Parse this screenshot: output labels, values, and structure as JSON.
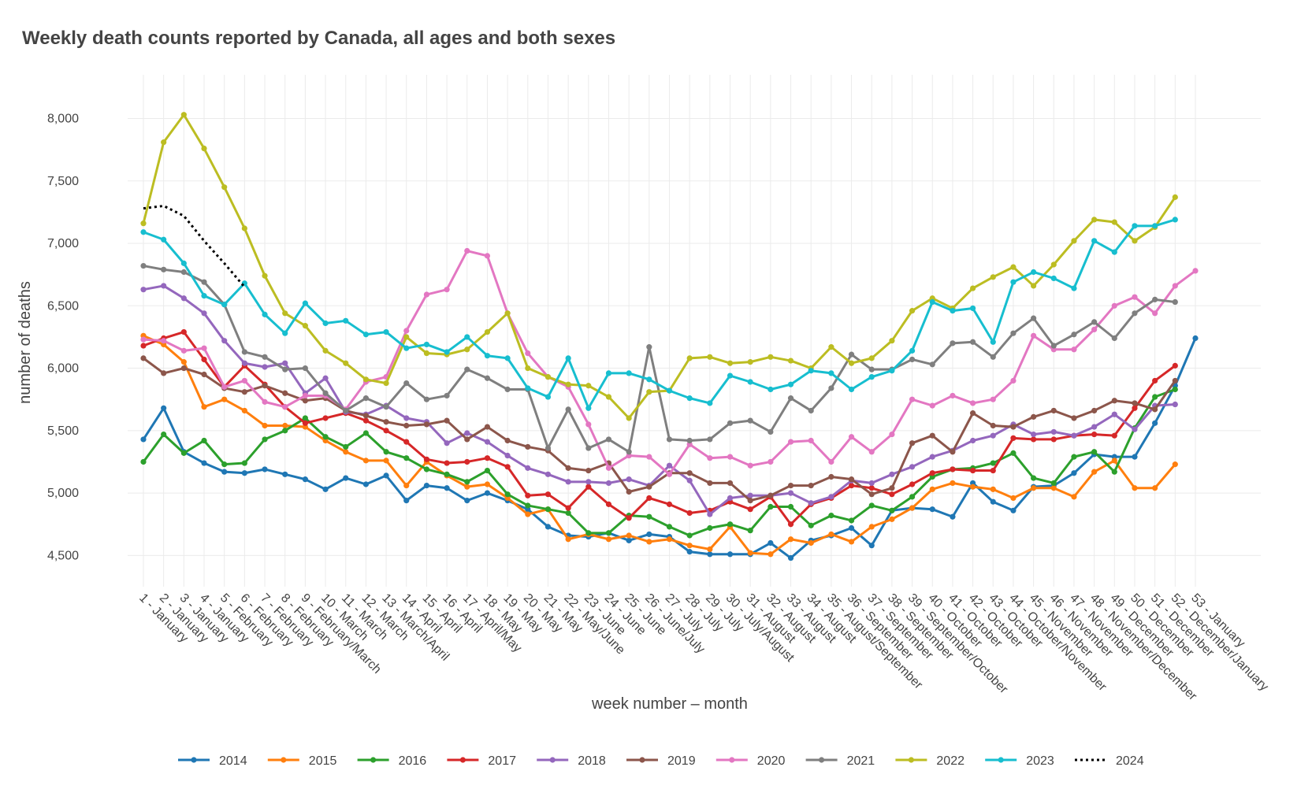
{
  "chart_data": {
    "type": "line",
    "title": "Weekly death counts reported by Canada, all ages and both sexes",
    "xlabel": "week number – month",
    "ylabel": "number of deaths",
    "ylim": [
      4250,
      8350
    ],
    "yticks": [
      4500,
      5000,
      5500,
      6000,
      6500,
      7000,
      7500,
      8000
    ],
    "ytick_labels": [
      "4,500",
      "5,000",
      "5,500",
      "6,000",
      "6,500",
      "7,000",
      "7,500",
      "8,000"
    ],
    "grid": true,
    "legend_position": "bottom",
    "categories": [
      "1 - January",
      "2 - January",
      "3 - January",
      "4 - January",
      "5 - February",
      "6 - February",
      "7 - February",
      "8 - February",
      "9 - February/March",
      "10 - March",
      "11 - March",
      "12 - March",
      "13 - March/April",
      "14 - April",
      "15 - April",
      "16 - April",
      "17 - April/May",
      "18 - May",
      "19 - May",
      "20 - May",
      "21 - May",
      "22 - May/June",
      "23 - June",
      "24 - June",
      "25 - June",
      "26 - June/July",
      "27 - July",
      "28 - July",
      "29 - July",
      "30 - July/August",
      "31 - August",
      "32 - August",
      "33 - August",
      "34 - August",
      "35 - August/September",
      "36 - September",
      "37 - September",
      "38 - September",
      "39 - September/October",
      "40 - October",
      "41 - October",
      "42 - October",
      "43 - October",
      "44 - October/November",
      "45 - November",
      "46 - November",
      "47 - November",
      "48 - November/December",
      "49 - December",
      "50 - December",
      "51 - December",
      "52 - December/January",
      "53 - January"
    ],
    "series": [
      {
        "name": "2014",
        "color": "#1f77b4",
        "dash": false,
        "values": [
          5430,
          5680,
          5330,
          5240,
          5170,
          5160,
          5190,
          5150,
          5110,
          5030,
          5120,
          5070,
          5140,
          4940,
          5060,
          5040,
          4940,
          5000,
          4940,
          4870,
          4730,
          4660,
          4650,
          4680,
          4620,
          4670,
          4650,
          4530,
          4510,
          4510,
          4510,
          4600,
          4480,
          4620,
          4660,
          4720,
          4580,
          4860,
          4880,
          4870,
          4810,
          5080,
          4930,
          4860,
          5050,
          5060,
          5160,
          5310,
          5290,
          5290,
          5560,
          5860,
          6240
        ]
      },
      {
        "name": "2015",
        "color": "#ff7f0e",
        "dash": false,
        "values": [
          6260,
          6190,
          6050,
          5690,
          5750,
          5660,
          5540,
          5540,
          5530,
          5420,
          5330,
          5260,
          5260,
          5060,
          5250,
          5140,
          5050,
          5070,
          4960,
          4830,
          4870,
          4630,
          4670,
          4630,
          4660,
          4610,
          4630,
          4580,
          4550,
          4730,
          4520,
          4510,
          4630,
          4600,
          4670,
          4610,
          4730,
          4790,
          4880,
          5030,
          5080,
          5050,
          5030,
          4960,
          5040,
          5040,
          4970,
          5170,
          5260,
          5040,
          5040,
          5230,
          null
        ]
      },
      {
        "name": "2016",
        "color": "#2ca02c",
        "dash": false,
        "values": [
          5250,
          5470,
          5320,
          5420,
          5230,
          5240,
          5430,
          5500,
          5600,
          5450,
          5370,
          5480,
          5330,
          5280,
          5190,
          5150,
          5090,
          5180,
          4990,
          4900,
          4870,
          4840,
          4680,
          4680,
          4820,
          4810,
          4730,
          4660,
          4720,
          4750,
          4700,
          4890,
          4890,
          4740,
          4820,
          4780,
          4900,
          4860,
          4970,
          5130,
          5190,
          5200,
          5240,
          5320,
          5120,
          5080,
          5290,
          5330,
          5170,
          5520,
          5770,
          5830,
          null
        ]
      },
      {
        "name": "2017",
        "color": "#d62728",
        "dash": false,
        "values": [
          6180,
          6240,
          6290,
          6070,
          5850,
          6020,
          5870,
          5690,
          5560,
          5600,
          5640,
          5580,
          5500,
          5410,
          5270,
          5240,
          5250,
          5280,
          5210,
          4980,
          4990,
          4880,
          5050,
          4910,
          4800,
          4960,
          4910,
          4840,
          4860,
          4930,
          4870,
          4970,
          4750,
          4910,
          4960,
          5060,
          5040,
          4990,
          5070,
          5160,
          5190,
          5180,
          5180,
          5440,
          5430,
          5430,
          5460,
          5470,
          5460,
          5680,
          5900,
          6020,
          null
        ]
      },
      {
        "name": "2018",
        "color": "#9467bd",
        "dash": false,
        "values": [
          6630,
          6660,
          6560,
          6440,
          6220,
          6040,
          6010,
          6040,
          5800,
          5920,
          5650,
          5630,
          5700,
          5600,
          5570,
          5400,
          5480,
          5410,
          5300,
          5200,
          5150,
          5090,
          5090,
          5080,
          5110,
          5060,
          5220,
          5100,
          4830,
          4960,
          4980,
          4980,
          5000,
          4920,
          4970,
          5100,
          5080,
          5150,
          5210,
          5290,
          5340,
          5420,
          5460,
          5550,
          5470,
          5490,
          5460,
          5530,
          5630,
          5510,
          5700,
          5710,
          null
        ]
      },
      {
        "name": "2019",
        "color": "#8c564b",
        "dash": false,
        "values": [
          6080,
          5960,
          6000,
          5950,
          5840,
          5810,
          5860,
          5800,
          5740,
          5760,
          5660,
          5620,
          5570,
          5540,
          5550,
          5580,
          5430,
          5530,
          5420,
          5370,
          5340,
          5200,
          5180,
          5240,
          5010,
          5050,
          5160,
          5160,
          5080,
          5080,
          4940,
          4980,
          5060,
          5060,
          5130,
          5110,
          4990,
          5040,
          5400,
          5460,
          5330,
          5640,
          5540,
          5530,
          5610,
          5660,
          5600,
          5660,
          5740,
          5720,
          5670,
          5900,
          null
        ]
      },
      {
        "name": "2020",
        "color": "#e377c2",
        "dash": false,
        "values": [
          6230,
          6220,
          6140,
          6160,
          5850,
          5900,
          5730,
          5690,
          5780,
          5780,
          5670,
          5890,
          5930,
          6300,
          6590,
          6630,
          6940,
          6900,
          6440,
          6120,
          5930,
          5850,
          5550,
          5200,
          5300,
          5290,
          5150,
          5390,
          5280,
          5290,
          5220,
          5250,
          5410,
          5420,
          5250,
          5450,
          5330,
          5470,
          5750,
          5700,
          5780,
          5720,
          5750,
          5900,
          6260,
          6150,
          6150,
          6310,
          6500,
          6570,
          6440,
          6660,
          6780
        ]
      },
      {
        "name": "2021",
        "color": "#7f7f7f",
        "dash": false,
        "values": [
          6820,
          6790,
          6770,
          6690,
          6510,
          6130,
          6090,
          5990,
          6000,
          5800,
          5660,
          5760,
          5690,
          5880,
          5750,
          5780,
          5990,
          5920,
          5830,
          5830,
          5360,
          5670,
          5360,
          5430,
          5330,
          6170,
          5430,
          5420,
          5430,
          5560,
          5580,
          5490,
          5760,
          5660,
          5840,
          6110,
          5990,
          5990,
          6070,
          6030,
          6200,
          6210,
          6090,
          6280,
          6400,
          6180,
          6270,
          6370,
          6240,
          6440,
          6550,
          6530,
          null
        ]
      },
      {
        "name": "2022",
        "color": "#bcbd22",
        "dash": false,
        "values": [
          7160,
          7810,
          8030,
          7760,
          7450,
          7120,
          6740,
          6440,
          6340,
          6140,
          6040,
          5910,
          5880,
          6250,
          6120,
          6110,
          6150,
          6290,
          6440,
          6000,
          5930,
          5870,
          5860,
          5770,
          5600,
          5810,
          5820,
          6080,
          6090,
          6040,
          6050,
          6090,
          6060,
          6000,
          6170,
          6040,
          6080,
          6220,
          6460,
          6560,
          6480,
          6640,
          6730,
          6810,
          6660,
          6830,
          7020,
          7190,
          7170,
          7020,
          7130,
          7370,
          null
        ]
      },
      {
        "name": "2023",
        "color": "#17becf",
        "dash": false,
        "values": [
          7090,
          7030,
          6840,
          6580,
          6510,
          6680,
          6430,
          6280,
          6520,
          6360,
          6380,
          6270,
          6290,
          6160,
          6190,
          6130,
          6250,
          6100,
          6080,
          5840,
          5770,
          6080,
          5680,
          5960,
          5960,
          5910,
          5820,
          5760,
          5720,
          5940,
          5890,
          5830,
          5870,
          5980,
          5960,
          5830,
          5930,
          5980,
          6140,
          6530,
          6460,
          6480,
          6210,
          6690,
          6770,
          6720,
          6640,
          7020,
          6930,
          7140,
          7140,
          7190,
          null
        ]
      },
      {
        "name": "2024",
        "color": "#000000",
        "dash": true,
        "values": [
          7280,
          7300,
          7220,
          7020,
          6840,
          6650,
          null,
          null,
          null,
          null,
          null,
          null,
          null,
          null,
          null,
          null,
          null,
          null,
          null,
          null,
          null,
          null,
          null,
          null,
          null,
          null,
          null,
          null,
          null,
          null,
          null,
          null,
          null,
          null,
          null,
          null,
          null,
          null,
          null,
          null,
          null,
          null,
          null,
          null,
          null,
          null,
          null,
          null,
          null,
          null,
          null,
          null,
          null
        ]
      }
    ]
  }
}
